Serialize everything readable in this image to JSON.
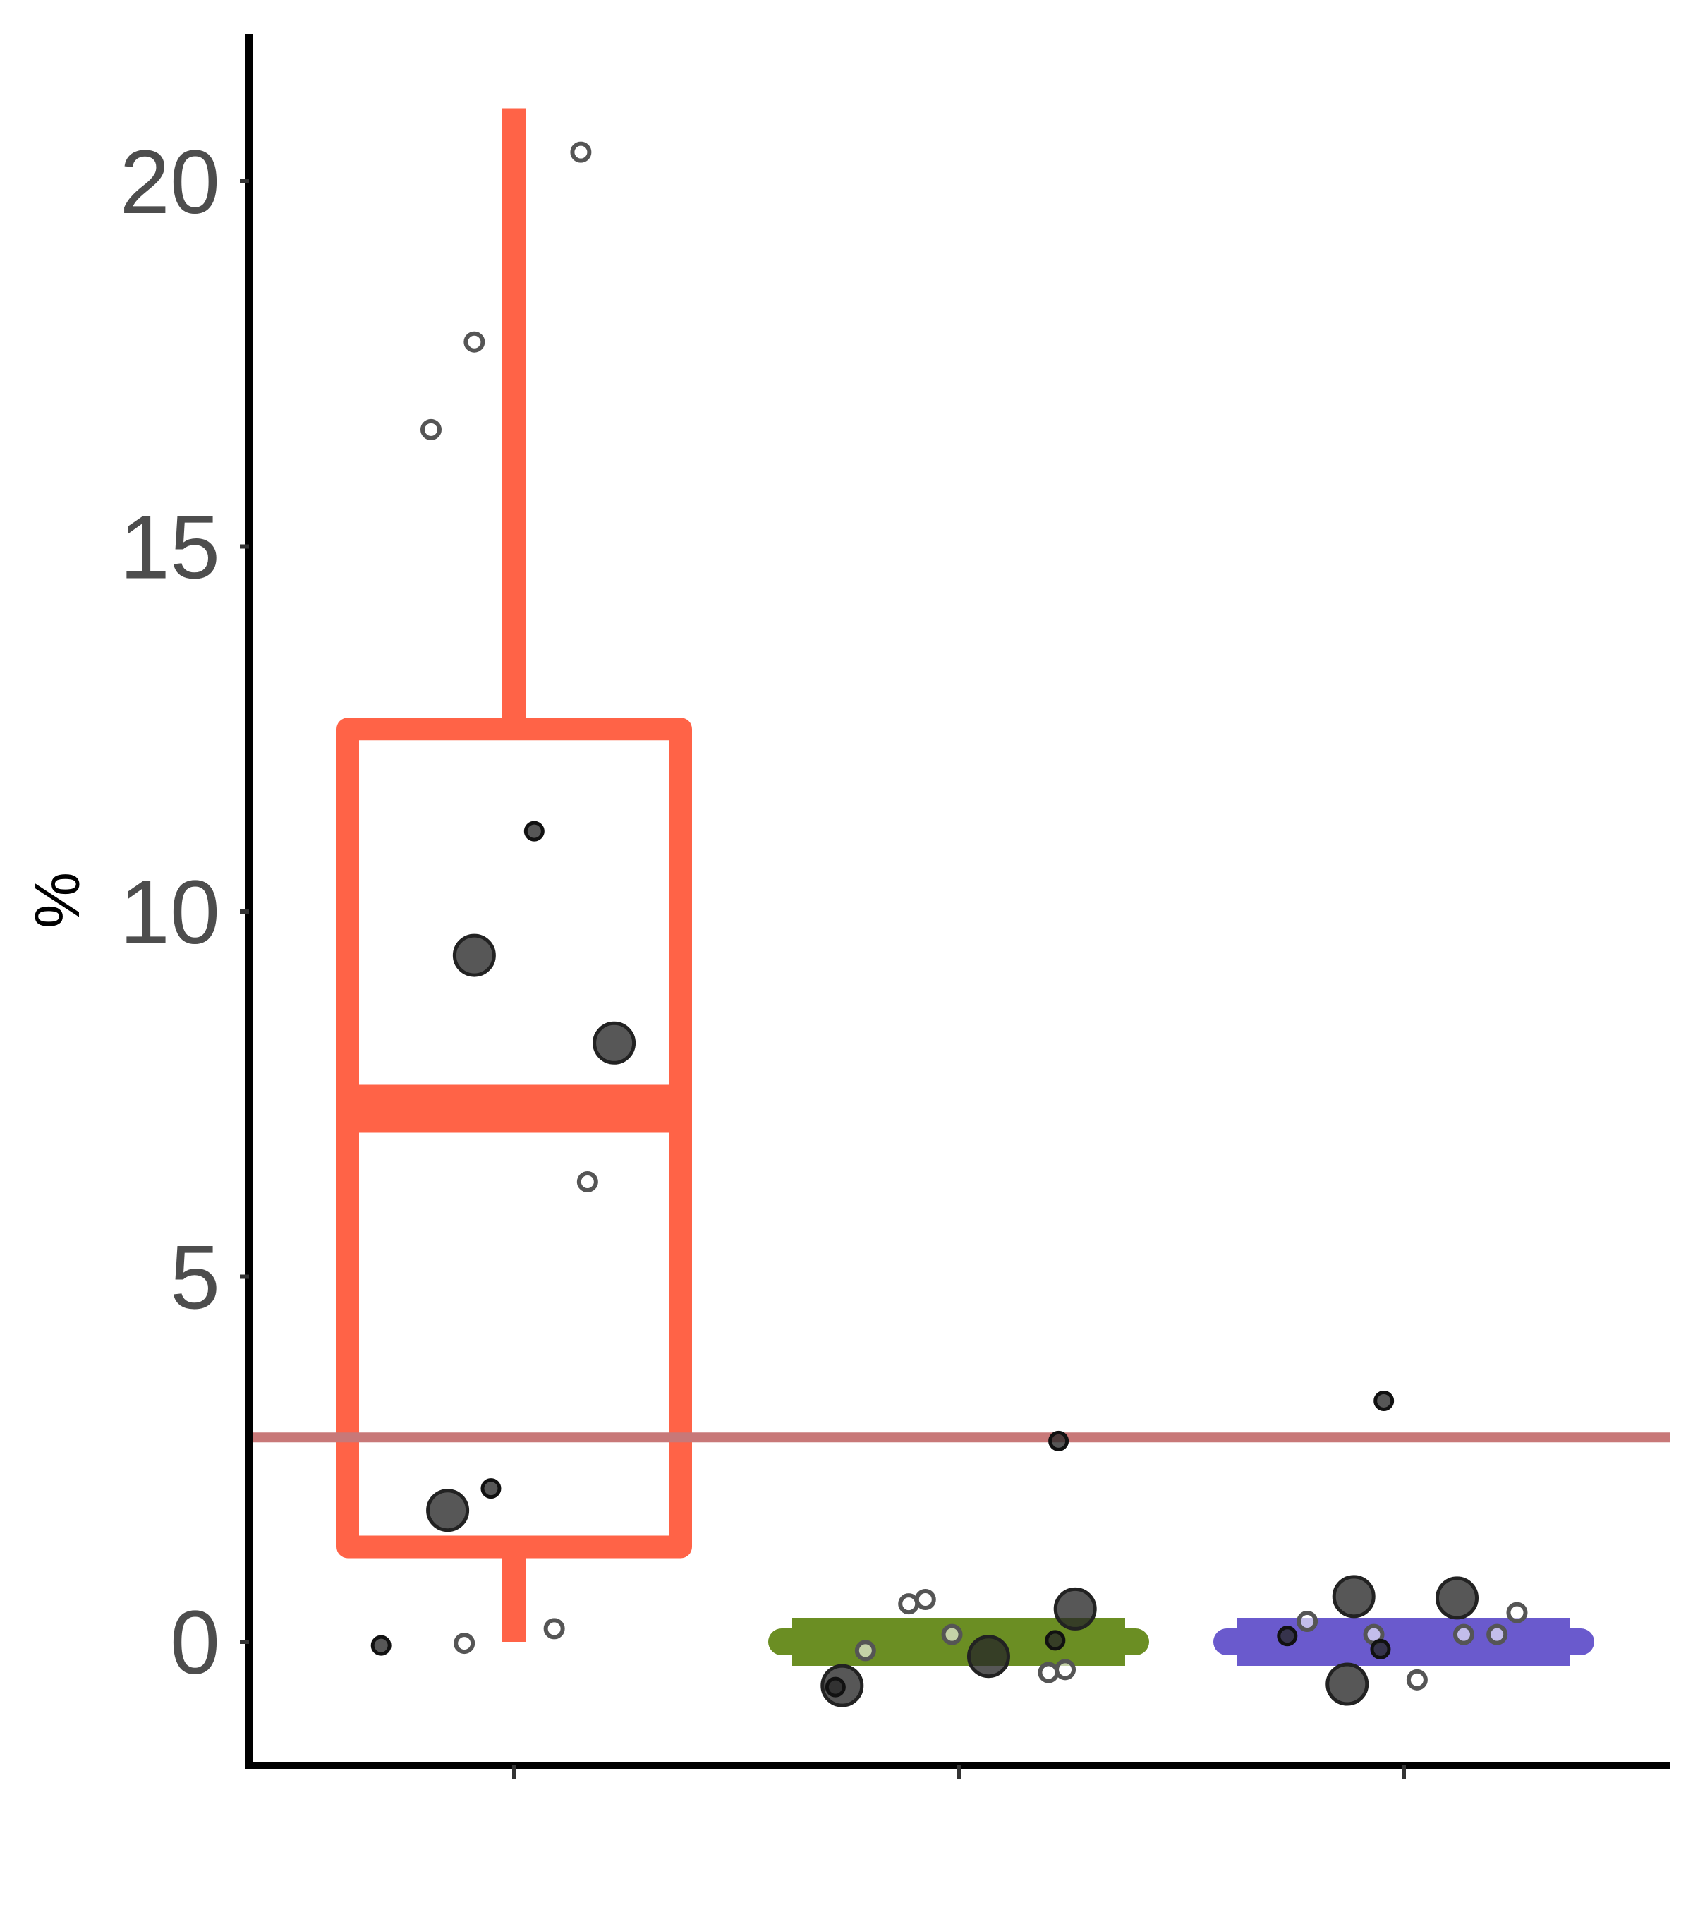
{
  "chart_data": {
    "type": "box",
    "ylabel": "%",
    "xlabel": "",
    "ylim": [
      -1.7,
      22
    ],
    "yticks": [
      0,
      5,
      10,
      15,
      20
    ],
    "categories": [
      "",
      "",
      ""
    ],
    "reference_line": {
      "y": 2.8,
      "color": "#c87878"
    },
    "boxes": [
      {
        "color": "#ff6347",
        "whisker_low": 0.0,
        "q1": 1.3,
        "median": 7.3,
        "q3": 12.5,
        "whisker_high": 21.0
      },
      {
        "color": "#6b8e23",
        "whisker_low": 0.0,
        "q1": 0.0,
        "median": 0.0,
        "q3": 0.0,
        "whisker_high": 0.0
      },
      {
        "color": "#6a5acd",
        "whisker_low": 0.0,
        "q1": 0.0,
        "median": 0.0,
        "q3": 0.0,
        "whisker_high": 0.0
      }
    ],
    "points": [
      {
        "group": 0,
        "dx": -0.4,
        "y": -0.05,
        "size": "small",
        "filled": true
      },
      {
        "group": 0,
        "dx": -0.15,
        "y": -0.02,
        "size": "small",
        "filled": false
      },
      {
        "group": 0,
        "dx": 0.12,
        "y": 0.18,
        "size": "small",
        "filled": false
      },
      {
        "group": 0,
        "dx": -0.2,
        "y": 1.8,
        "size": "large",
        "filled": true
      },
      {
        "group": 0,
        "dx": -0.07,
        "y": 2.1,
        "size": "small",
        "filled": true
      },
      {
        "group": 0,
        "dx": 0.22,
        "y": 6.3,
        "size": "small",
        "filled": false
      },
      {
        "group": 0,
        "dx": 0.3,
        "y": 8.2,
        "size": "large",
        "filled": true
      },
      {
        "group": 0,
        "dx": -0.12,
        "y": 9.4,
        "size": "large",
        "filled": true
      },
      {
        "group": 0,
        "dx": 0.06,
        "y": 11.1,
        "size": "small",
        "filled": true
      },
      {
        "group": 0,
        "dx": -0.25,
        "y": 16.6,
        "size": "small",
        "filled": false
      },
      {
        "group": 0,
        "dx": -0.12,
        "y": 17.8,
        "size": "small",
        "filled": false
      },
      {
        "group": 0,
        "dx": 0.2,
        "y": 20.4,
        "size": "small",
        "filled": false
      },
      {
        "group": 1,
        "dx": -0.35,
        "y": -0.6,
        "size": "large",
        "filled": true
      },
      {
        "group": 1,
        "dx": -0.37,
        "y": -0.62,
        "size": "small",
        "filled": true
      },
      {
        "group": 1,
        "dx": -0.28,
        "y": -0.12,
        "size": "small",
        "filled": false
      },
      {
        "group": 1,
        "dx": -0.15,
        "y": 0.52,
        "size": "small",
        "filled": false
      },
      {
        "group": 1,
        "dx": -0.1,
        "y": 0.58,
        "size": "small",
        "filled": false
      },
      {
        "group": 1,
        "dx": -0.02,
        "y": 0.1,
        "size": "small",
        "filled": false
      },
      {
        "group": 1,
        "dx": 0.09,
        "y": -0.2,
        "size": "large",
        "filled": true
      },
      {
        "group": 1,
        "dx": 0.27,
        "y": -0.42,
        "size": "small",
        "filled": false
      },
      {
        "group": 1,
        "dx": 0.29,
        "y": 0.02,
        "size": "small",
        "filled": true
      },
      {
        "group": 1,
        "dx": 0.32,
        "y": -0.38,
        "size": "small",
        "filled": false
      },
      {
        "group": 1,
        "dx": 0.35,
        "y": 0.45,
        "size": "large",
        "filled": true
      },
      {
        "group": 1,
        "dx": 0.3,
        "y": 2.75,
        "size": "small",
        "filled": true
      },
      {
        "group": 2,
        "dx": -0.35,
        "y": 0.08,
        "size": "small",
        "filled": true
      },
      {
        "group": 2,
        "dx": -0.29,
        "y": 0.28,
        "size": "small",
        "filled": false
      },
      {
        "group": 2,
        "dx": -0.17,
        "y": -0.58,
        "size": "large",
        "filled": true
      },
      {
        "group": 2,
        "dx": -0.15,
        "y": 0.62,
        "size": "large",
        "filled": true
      },
      {
        "group": 2,
        "dx": -0.09,
        "y": 0.1,
        "size": "small",
        "filled": false
      },
      {
        "group": 2,
        "dx": -0.07,
        "y": -0.1,
        "size": "small",
        "filled": true
      },
      {
        "group": 2,
        "dx": 0.04,
        "y": -0.52,
        "size": "small",
        "filled": false
      },
      {
        "group": 2,
        "dx": 0.16,
        "y": 0.6,
        "size": "large",
        "filled": true
      },
      {
        "group": 2,
        "dx": 0.18,
        "y": 0.1,
        "size": "small",
        "filled": false
      },
      {
        "group": 2,
        "dx": 0.28,
        "y": 0.1,
        "size": "small",
        "filled": false
      },
      {
        "group": 2,
        "dx": 0.34,
        "y": 0.4,
        "size": "small",
        "filled": false
      },
      {
        "group": 2,
        "dx": -0.06,
        "y": 3.3,
        "size": "small",
        "filled": true
      }
    ]
  }
}
